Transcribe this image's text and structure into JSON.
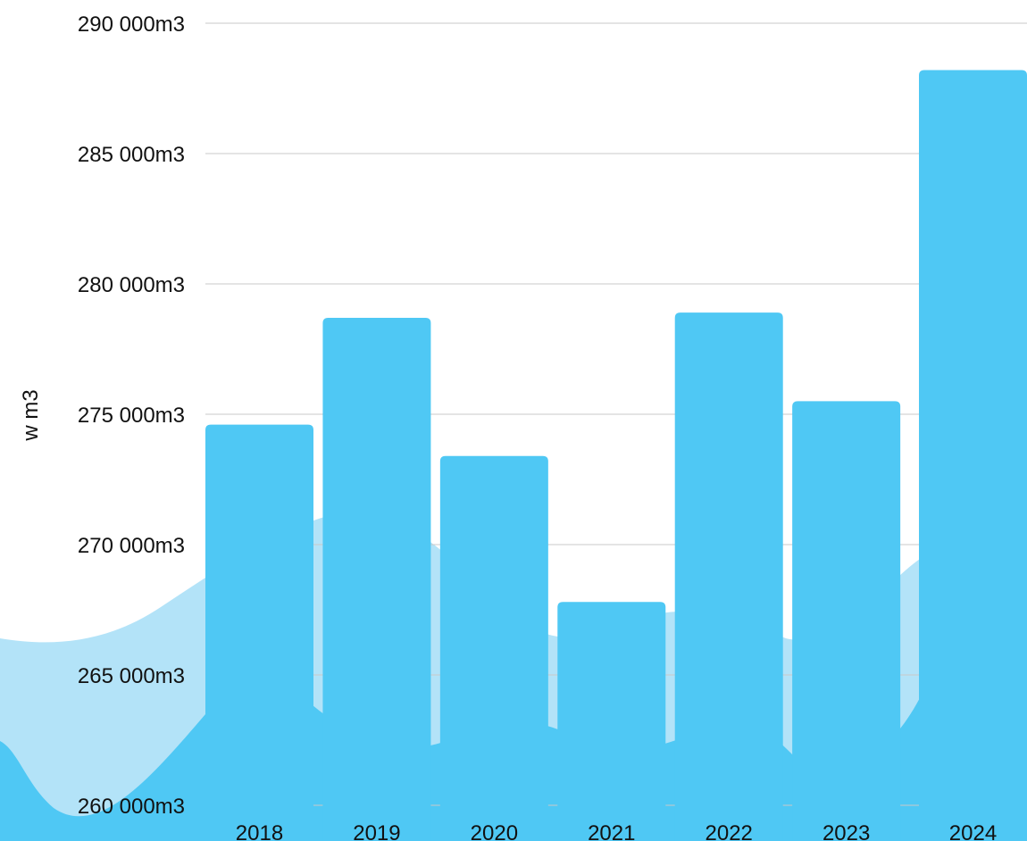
{
  "chart_data": {
    "type": "bar",
    "title": "",
    "xlabel": "",
    "ylabel": "w m3",
    "categories": [
      "2018",
      "2019",
      "2020",
      "2021",
      "2022",
      "2023",
      "2024"
    ],
    "values": [
      274600,
      278700,
      273400,
      267800,
      278900,
      275500,
      288200
    ],
    "ylim": [
      260000,
      290000
    ],
    "y_ticks": [
      260000,
      265000,
      270000,
      275000,
      280000,
      285000,
      290000
    ],
    "y_tick_labels": [
      "260 000m3",
      "265 000m3",
      "270 000m3",
      "275 000m3",
      "280 000m3",
      "285 000m3",
      "290 000m3"
    ],
    "grid": true,
    "legend": "none",
    "colors": {
      "bar": "#4fc8f4",
      "wave_light": "#b3e3f8",
      "wave_dark": "#4fc8f4",
      "grid": "#c8c8c8",
      "text": "#111111"
    }
  }
}
